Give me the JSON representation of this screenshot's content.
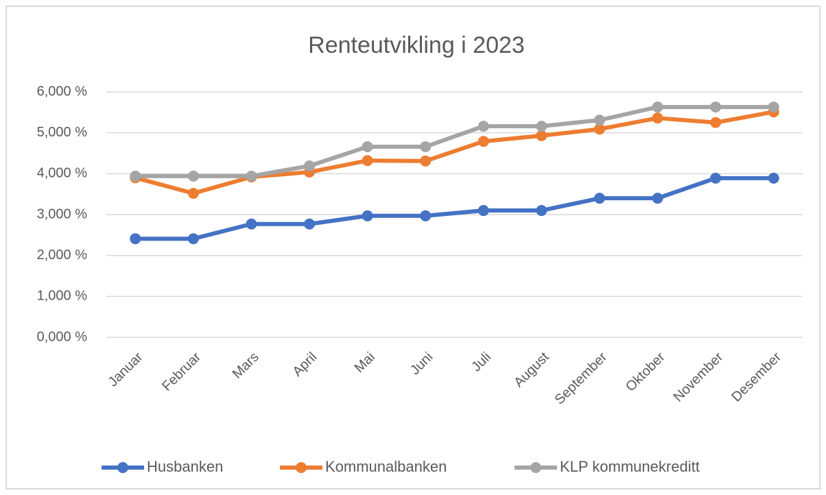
{
  "chart_data": {
    "type": "line",
    "title": "Renteutvikling i 2023",
    "categories": [
      "Januar",
      "Februar",
      "Mars",
      "April",
      "Mai",
      "Juni",
      "Juli",
      "August",
      "September",
      "Oktober",
      "November",
      "Desember"
    ],
    "series": [
      {
        "name": "Husbanken",
        "color": "#4472c4",
        "values": [
          2.41,
          2.41,
          2.77,
          2.77,
          2.97,
          2.97,
          3.1,
          3.1,
          3.4,
          3.4,
          3.89,
          3.89
        ]
      },
      {
        "name": "Kommunalbanken",
        "color": "#ed7d31",
        "values": [
          3.9,
          3.52,
          3.92,
          4.04,
          4.32,
          4.31,
          4.79,
          4.93,
          5.09,
          5.36,
          5.25,
          5.51
        ]
      },
      {
        "name": "KLP kommunekreditt",
        "color": "#a5a5a5",
        "values": [
          3.94,
          3.94,
          3.94,
          4.19,
          4.66,
          4.66,
          5.16,
          5.16,
          5.31,
          5.63,
          5.63,
          5.63
        ]
      }
    ],
    "ylim": [
      0,
      6
    ],
    "yticks": [
      {
        "value": 0,
        "label": "0,000 %"
      },
      {
        "value": 1,
        "label": "1,000 %"
      },
      {
        "value": 2,
        "label": "2,000 %"
      },
      {
        "value": 3,
        "label": "3,000 %"
      },
      {
        "value": 4,
        "label": "4,000 %"
      },
      {
        "value": 5,
        "label": "5,000 %"
      },
      {
        "value": 6,
        "label": "6,000 %"
      }
    ],
    "grid": true,
    "legend": "bottom"
  }
}
